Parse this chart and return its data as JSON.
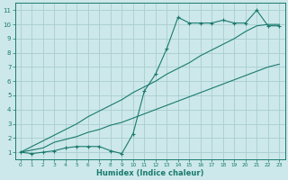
{
  "xlabel": "Humidex (Indice chaleur)",
  "bg_color": "#cce8ea",
  "grid_color": "#aacdd0",
  "line_color": "#1a7a6e",
  "x_data": [
    0,
    1,
    2,
    3,
    4,
    5,
    6,
    7,
    8,
    9,
    10,
    11,
    12,
    13,
    14,
    15,
    16,
    17,
    18,
    19,
    20,
    21,
    22,
    23
  ],
  "y_main": [
    1.0,
    0.9,
    1.0,
    1.1,
    1.3,
    1.4,
    1.4,
    1.4,
    1.1,
    0.9,
    2.3,
    5.3,
    6.5,
    8.3,
    10.5,
    10.1,
    10.1,
    10.1,
    10.3,
    10.1,
    10.1,
    11.0,
    9.9,
    9.9
  ],
  "y_line_shallow": [
    1.0,
    1.15,
    1.3,
    1.7,
    1.9,
    2.1,
    2.4,
    2.6,
    2.9,
    3.1,
    3.4,
    3.7,
    4.0,
    4.3,
    4.6,
    4.9,
    5.2,
    5.5,
    5.8,
    6.1,
    6.4,
    6.7,
    7.0,
    7.2
  ],
  "y_line_steep": [
    1.0,
    1.4,
    1.8,
    2.2,
    2.6,
    3.0,
    3.5,
    3.9,
    4.3,
    4.7,
    5.2,
    5.6,
    6.0,
    6.5,
    6.9,
    7.3,
    7.8,
    8.2,
    8.6,
    9.0,
    9.5,
    9.9,
    10.0,
    10.0
  ],
  "xlim": [
    -0.5,
    23.5
  ],
  "ylim": [
    0.5,
    11.5
  ],
  "xticks": [
    0,
    1,
    2,
    3,
    4,
    5,
    6,
    7,
    8,
    9,
    10,
    11,
    12,
    13,
    14,
    15,
    16,
    17,
    18,
    19,
    20,
    21,
    22,
    23
  ],
  "yticks": [
    1,
    2,
    3,
    4,
    5,
    6,
    7,
    8,
    9,
    10,
    11
  ]
}
